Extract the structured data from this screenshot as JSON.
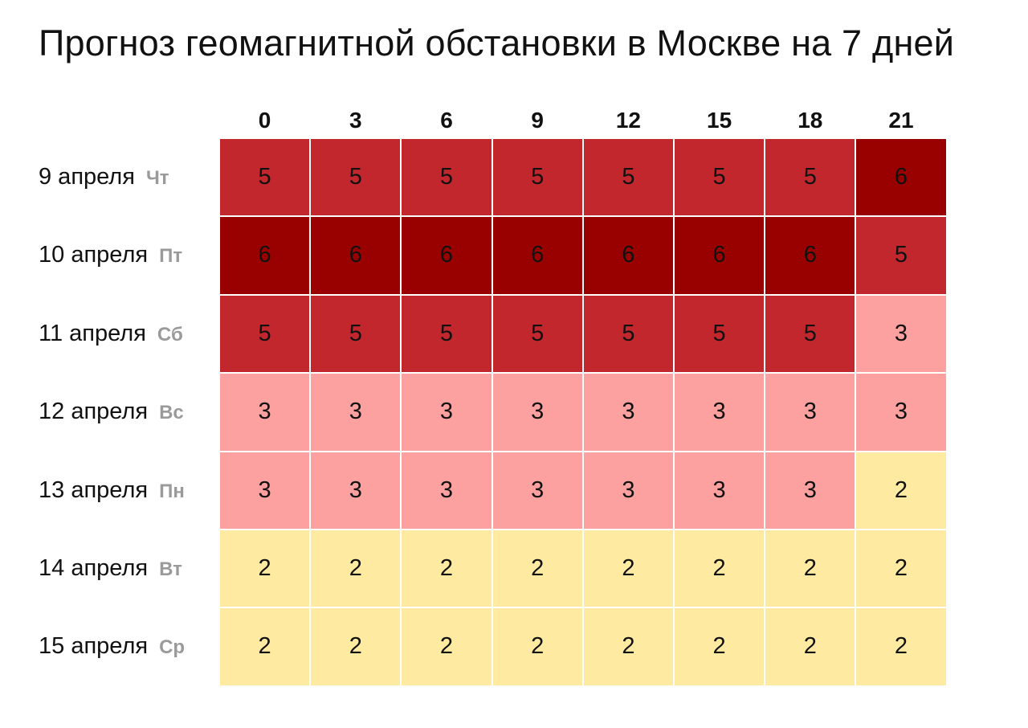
{
  "title": "Прогноз геомагнитной обстановки в Москве на 7 дней",
  "colors": {
    "level_2": "#feeaa1",
    "level_3": "#fda0a0",
    "level_5": "#c1272d",
    "level_6": "#990000"
  },
  "chart_data": {
    "type": "heatmap",
    "title": "Прогноз геомагнитной обстановки в Москве на 7 дней",
    "x": [
      "0",
      "3",
      "6",
      "9",
      "12",
      "15",
      "18",
      "21"
    ],
    "rows": [
      {
        "date": "9 апреля",
        "dow": "Чт",
        "values": [
          5,
          5,
          5,
          5,
          5,
          5,
          5,
          6
        ]
      },
      {
        "date": "10 апреля",
        "dow": "Пт",
        "values": [
          6,
          6,
          6,
          6,
          6,
          6,
          6,
          5
        ]
      },
      {
        "date": "11 апреля",
        "dow": "Сб",
        "values": [
          5,
          5,
          5,
          5,
          5,
          5,
          5,
          3
        ]
      },
      {
        "date": "12 апреля",
        "dow": "Вс",
        "values": [
          3,
          3,
          3,
          3,
          3,
          3,
          3,
          3
        ]
      },
      {
        "date": "13 апреля",
        "dow": "Пн",
        "values": [
          3,
          3,
          3,
          3,
          3,
          3,
          3,
          2
        ]
      },
      {
        "date": "14 апреля",
        "dow": "Вт",
        "values": [
          2,
          2,
          2,
          2,
          2,
          2,
          2,
          2
        ]
      },
      {
        "date": "15 апреля",
        "dow": "Ср",
        "values": [
          2,
          2,
          2,
          2,
          2,
          2,
          2,
          2
        ]
      }
    ]
  }
}
